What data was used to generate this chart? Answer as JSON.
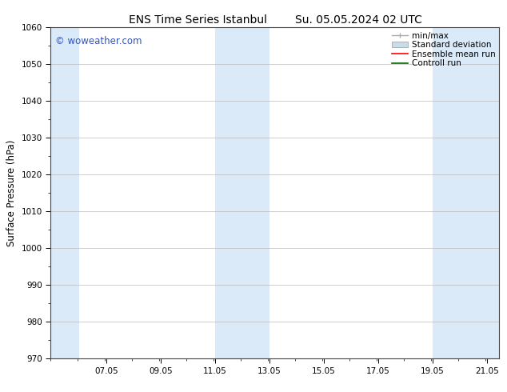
{
  "title_left": "ENS Time Series Istanbul",
  "title_right": "Su. 05.05.2024 02 UTC",
  "ylabel": "Surface Pressure (hPa)",
  "ylim": [
    970,
    1060
  ],
  "yticks": [
    970,
    980,
    990,
    1000,
    1010,
    1020,
    1030,
    1040,
    1050,
    1060
  ],
  "xlim": [
    5.0,
    21.5
  ],
  "xticks": [
    7.05,
    9.05,
    11.05,
    13.05,
    15.05,
    17.05,
    19.05,
    21.05
  ],
  "xticklabels": [
    "07.05",
    "09.05",
    "11.05",
    "13.05",
    "15.05",
    "17.05",
    "19.05",
    "21.05"
  ],
  "watermark": "© woweather.com",
  "watermark_color": "#3355bb",
  "bg_color": "#ffffff",
  "plot_bg_color": "#ffffff",
  "shaded_bands": [
    {
      "xmin": 5.0,
      "xmax": 6.05,
      "color": "#daeaf8"
    },
    {
      "xmin": 11.05,
      "xmax": 13.05,
      "color": "#daeaf8"
    },
    {
      "xmin": 19.05,
      "xmax": 21.5,
      "color": "#daeaf8"
    }
  ],
  "legend_entries": [
    {
      "label": "min/max",
      "color": "#aaaaaa",
      "lw": 1.0,
      "ls": "-",
      "type": "errorbar"
    },
    {
      "label": "Standard deviation",
      "color": "#c8dcea",
      "lw": 5,
      "ls": "-",
      "type": "band"
    },
    {
      "label": "Ensemble mean run",
      "color": "#ff0000",
      "lw": 1.2,
      "ls": "-",
      "type": "line"
    },
    {
      "label": "Controll run",
      "color": "#006600",
      "lw": 1.2,
      "ls": "-",
      "type": "line"
    }
  ],
  "tick_font_size": 7.5,
  "label_font_size": 8.5,
  "title_font_size": 10,
  "legend_font_size": 7.5
}
